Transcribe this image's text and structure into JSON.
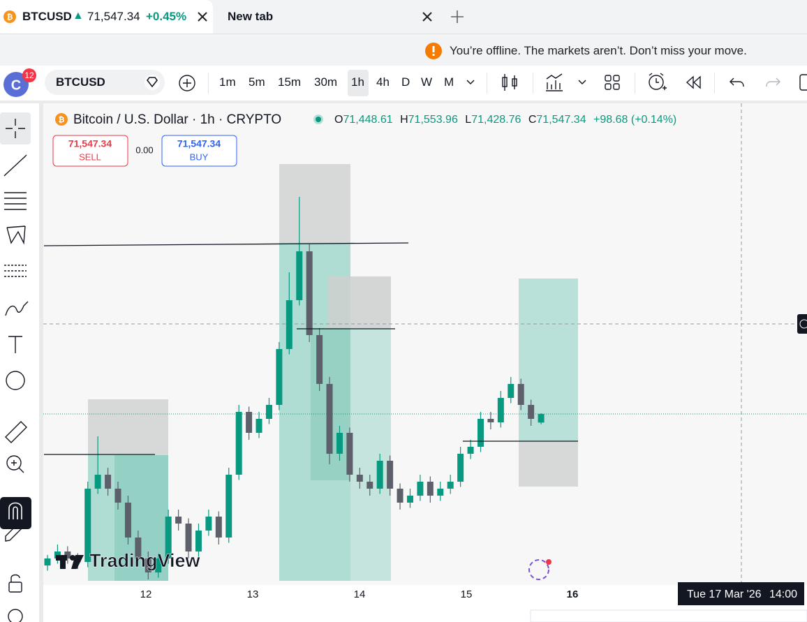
{
  "tabs": [
    {
      "symbol": "BTCUSD",
      "arrow": "▲",
      "price": "71,547.34",
      "change": "+0.45%"
    },
    {
      "title": "New tab"
    }
  ],
  "banner": "You’re offline. The markets aren’t. Don’t miss your move.",
  "toolbar": {
    "avatar": "C",
    "badge": "12",
    "symbol": "BTCUSD",
    "intervals": [
      "1m",
      "5m",
      "15m",
      "30m",
      "1h",
      "4h",
      "D",
      "W",
      "M"
    ]
  },
  "legend": {
    "title": "Bitcoin / U.S. Dollar · 1h · CRYPTO",
    "ohlc": [
      {
        "key": "O",
        "value": "71,448.61"
      },
      {
        "key": "H",
        "value": "71,553.96"
      },
      {
        "key": "L",
        "value": "71,428.76"
      },
      {
        "key": "C",
        "value": "71,547.34"
      }
    ],
    "change": "+98.68 (+0.14%)"
  },
  "trade": {
    "sell_price": "71,547.34",
    "sell": "SELL",
    "spread": "0.00",
    "buy_price": "71,547.34",
    "buy": "BUY"
  },
  "watermark": "TradingView",
  "chart_data": {
    "type": "candlestick",
    "up_color": "#089981",
    "down_color": "#5d606b",
    "ylim": [
      69627,
      75107
    ],
    "xtick_labels": [
      "12",
      "13",
      "14",
      "15",
      "16"
    ],
    "crosshair_date": "Tue 17 Mar '26",
    "crosshair_time": "14:00",
    "candles": [
      [
        69811,
        69931,
        69751,
        69891
      ],
      [
        69891,
        70051,
        69831,
        69971
      ],
      [
        69971,
        70031,
        69831,
        69891
      ],
      [
        69891,
        69951,
        69771,
        69851
      ],
      [
        69851,
        70771,
        69791,
        70691
      ],
      [
        70691,
        71291,
        70631,
        70851
      ],
      [
        70851,
        70931,
        70611,
        70691
      ],
      [
        70691,
        70771,
        70451,
        70531
      ],
      [
        70531,
        70611,
        70051,
        70131
      ],
      [
        70131,
        70211,
        69811,
        69891
      ],
      [
        69891,
        69971,
        69651,
        69731
      ],
      [
        69731,
        69951,
        69671,
        69891
      ],
      [
        69891,
        70451,
        69831,
        70371
      ],
      [
        70371,
        70451,
        70211,
        70291
      ],
      [
        70291,
        70351,
        69891,
        69971
      ],
      [
        69971,
        70291,
        69911,
        70211
      ],
      [
        70211,
        70451,
        70151,
        70371
      ],
      [
        70371,
        70431,
        70051,
        70131
      ],
      [
        70131,
        70931,
        70071,
        70851
      ],
      [
        70851,
        71651,
        70791,
        71571
      ],
      [
        71571,
        71631,
        71251,
        71331
      ],
      [
        71331,
        71571,
        71271,
        71491
      ],
      [
        71491,
        71731,
        71431,
        71651
      ],
      [
        71651,
        72371,
        71591,
        72291
      ],
      [
        72291,
        73171,
        72231,
        72851
      ],
      [
        72851,
        74035,
        72791,
        73411
      ],
      [
        73411,
        73491,
        72371,
        72451
      ],
      [
        72451,
        72531,
        71811,
        71891
      ],
      [
        71891,
        71971,
        70971,
        71091
      ],
      [
        71091,
        71411,
        71011,
        71331
      ],
      [
        71331,
        71391,
        70771,
        70851
      ],
      [
        70851,
        70931,
        70691,
        70771
      ],
      [
        70771,
        70851,
        70611,
        70691
      ],
      [
        70691,
        71091,
        70631,
        71011
      ],
      [
        71011,
        71071,
        70611,
        70691
      ],
      [
        70691,
        70751,
        70451,
        70531
      ],
      [
        70531,
        70691,
        70471,
        70611
      ],
      [
        70611,
        70851,
        70551,
        70771
      ],
      [
        70771,
        70831,
        70531,
        70611
      ],
      [
        70611,
        70771,
        70551,
        70691
      ],
      [
        70691,
        70851,
        70631,
        70771
      ],
      [
        70771,
        71171,
        70711,
        71091
      ],
      [
        71091,
        71251,
        71031,
        71171
      ],
      [
        71171,
        71571,
        71111,
        71491
      ],
      [
        71491,
        71571,
        71371,
        71451
      ],
      [
        71451,
        71811,
        71391,
        71731
      ],
      [
        71731,
        71971,
        71671,
        71891
      ],
      [
        71891,
        71951,
        71591,
        71651
      ],
      [
        71651,
        71711,
        71411,
        71491
      ],
      [
        71448.61,
        71553.96,
        71428.76,
        71547.34
      ]
    ]
  }
}
